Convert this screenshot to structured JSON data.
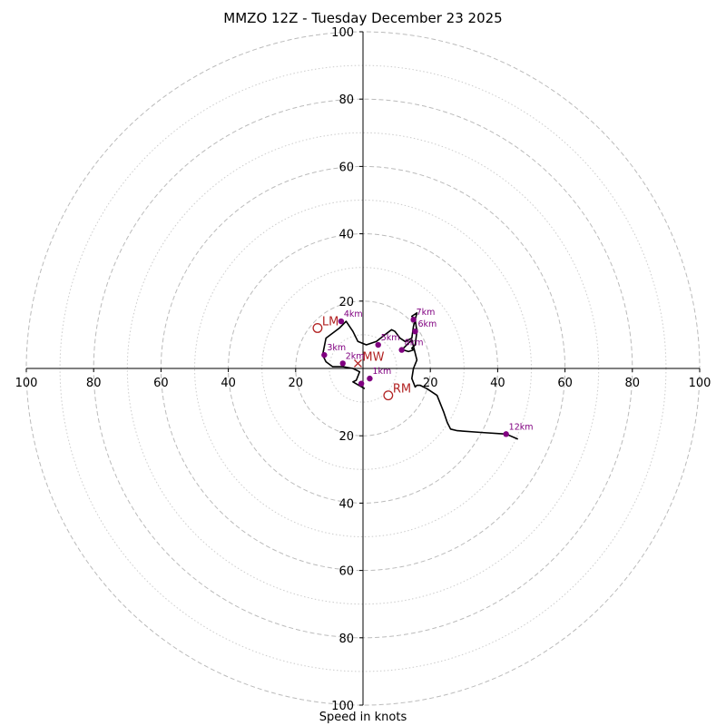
{
  "chart_data": {
    "type": "hodograph",
    "title": "MMZO 12Z - Tuesday December 23 2025",
    "xlabel": "Speed in knots",
    "range": [
      -100,
      100
    ],
    "rings_major": [
      20,
      40,
      60,
      80,
      100
    ],
    "rings_minor": [
      10,
      30,
      50,
      70,
      90
    ],
    "x_tick_labels": [
      "100",
      "80",
      "60",
      "40",
      "20",
      "20",
      "40",
      "60",
      "80",
      "100"
    ],
    "x_tick_values": [
      -100,
      -80,
      -60,
      -40,
      -20,
      20,
      40,
      60,
      80,
      100
    ],
    "y_tick_labels": [
      "100",
      "80",
      "60",
      "40",
      "20",
      "20",
      "40",
      "60",
      "80",
      "100"
    ],
    "y_tick_values": [
      100,
      80,
      60,
      40,
      20,
      -20,
      -40,
      -60,
      -80,
      -100
    ],
    "colors": {
      "trace": "#000000",
      "heights": "#800080",
      "motion": "#b22222",
      "grid": "#bbbbbb"
    },
    "hodograph": {
      "u": [
        0.5,
        -3,
        -2,
        -1,
        -3,
        -6,
        -9,
        -11,
        -12,
        -11,
        -7,
        -5,
        -3,
        -1.5,
        1,
        4,
        6.5,
        8.5,
        9.5,
        11,
        12.5,
        13.5,
        14.5,
        15,
        16,
        14.5,
        15.5,
        16,
        15.5,
        14.5,
        15,
        13.5,
        12,
        11.5,
        13.5,
        14.5,
        16,
        15,
        14.5,
        15.5,
        16,
        17,
        19,
        22,
        24,
        25,
        26,
        28,
        35,
        42.5,
        46
      ],
      "v": [
        -6,
        -4,
        -3.5,
        -1,
        0,
        0.5,
        0.5,
        2,
        4,
        9,
        12,
        14,
        11,
        8,
        7,
        8,
        10,
        11.5,
        11,
        9,
        8,
        8.5,
        9,
        12.5,
        16.5,
        15.5,
        14.5,
        11,
        7,
        6,
        5.5,
        5,
        5.5,
        5.5,
        7.5,
        8.5,
        2.5,
        0,
        -3,
        -5.5,
        -5,
        -5,
        -6,
        -8,
        -13,
        -16,
        -18,
        -18.5,
        -19,
        -19.5,
        -21
      ]
    },
    "height_markers": [
      {
        "label": "1km",
        "u": 2,
        "v": -3
      },
      {
        "label": "2km",
        "u": -6,
        "v": 1.5
      },
      {
        "label": "3km",
        "u": -11.5,
        "v": 4
      },
      {
        "label": "4km",
        "u": -6.5,
        "v": 14
      },
      {
        "label": "5km",
        "u": 4.5,
        "v": 7
      },
      {
        "label": "6km",
        "u": 15.5,
        "v": 11
      },
      {
        "label": "7km",
        "u": 15,
        "v": 14.5
      },
      {
        "label": "8km",
        "u": 11.5,
        "v": 5.5
      },
      {
        "label": "12km",
        "u": 42.5,
        "v": -19.5
      },
      {
        "label": "",
        "u": -0.5,
        "v": -4.5
      }
    ],
    "storm_motion": [
      {
        "label": "LM",
        "u": -13.5,
        "v": 12,
        "marker": "circle"
      },
      {
        "label": "MW",
        "u": -1.5,
        "v": 1.5,
        "marker": "x"
      },
      {
        "label": "RM",
        "u": 7.5,
        "v": -8,
        "marker": "circle"
      }
    ]
  }
}
